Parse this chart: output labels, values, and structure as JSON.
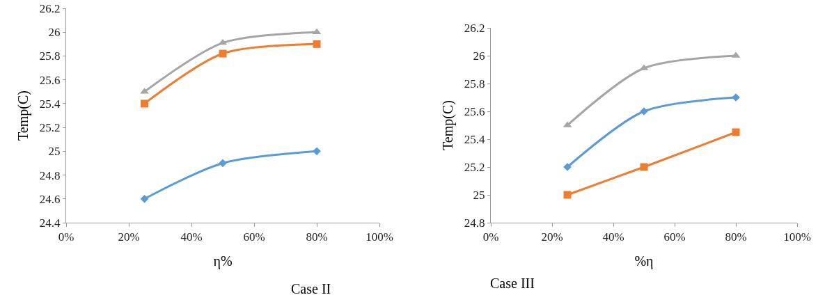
{
  "chart_data": [
    {
      "type": "line",
      "xlabel": "η%",
      "ylabel": "Temp(C)",
      "x": [
        25,
        50,
        80
      ],
      "xlim": [
        0,
        100
      ],
      "xticks": [
        {
          "value": 0,
          "label": "0%"
        },
        {
          "value": 20,
          "label": "20%"
        },
        {
          "value": 40,
          "label": "40%"
        },
        {
          "value": 60,
          "label": "60%"
        },
        {
          "value": 80,
          "label": "80%"
        },
        {
          "value": 100,
          "label": "100%"
        }
      ],
      "ylim": [
        24.4,
        26.2
      ],
      "yticks": [
        24.4,
        24.6,
        24.8,
        25,
        25.2,
        25.4,
        25.6,
        25.8,
        26,
        26.2
      ],
      "grid": false,
      "series": [
        {
          "color": "#5b9bd5",
          "marker": "diamond",
          "values": [
            24.6,
            24.9,
            25.0
          ]
        },
        {
          "color": "#ed7d31",
          "marker": "square",
          "values": [
            25.4,
            25.82,
            25.9
          ]
        },
        {
          "color": "#a5a5a5",
          "marker": "triangle",
          "values": [
            25.5,
            25.91,
            26.0
          ]
        }
      ],
      "annotations": [
        "Case II"
      ]
    },
    {
      "type": "line",
      "xlabel": "%η",
      "ylabel": "Temp(C)",
      "x": [
        25,
        50,
        80
      ],
      "xlim": [
        0,
        100
      ],
      "xticks": [
        {
          "value": 0,
          "label": "0%"
        },
        {
          "value": 20,
          "label": "20%"
        },
        {
          "value": 40,
          "label": "40%"
        },
        {
          "value": 60,
          "label": "60%"
        },
        {
          "value": 80,
          "label": "80%"
        },
        {
          "value": 100,
          "label": "100%"
        }
      ],
      "ylim": [
        24.8,
        26.2
      ],
      "yticks": [
        24.8,
        25,
        25.2,
        25.4,
        25.6,
        25.8,
        26,
        26.2
      ],
      "grid": false,
      "series": [
        {
          "color": "#5b9bd5",
          "marker": "diamond",
          "values": [
            25.2,
            25.6,
            25.7
          ]
        },
        {
          "color": "#ed7d31",
          "marker": "square",
          "values": [
            25.0,
            25.2,
            25.45
          ]
        },
        {
          "color": "#a5a5a5",
          "marker": "triangle",
          "values": [
            25.5,
            25.91,
            26.0
          ]
        }
      ],
      "annotations": [
        "Case III"
      ]
    }
  ]
}
